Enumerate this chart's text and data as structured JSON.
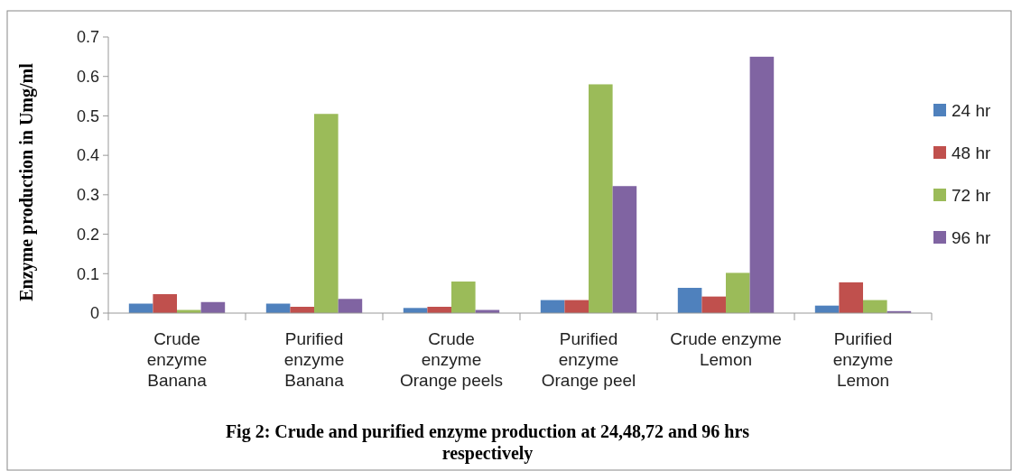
{
  "chart_data": {
    "type": "bar",
    "title": "Fig 2: Crude and purified enzyme production at 24,48,72 and 96 hrs\nrespectively",
    "ylabel": "Enzyme production in Umg/ml",
    "categories": [
      "Crude\nenzyme\nBanana",
      "Purified\nenzyme\nBanana",
      "Crude\nenzyme\nOrange peels",
      "Purified\nenzyme\nOrange peel",
      "Crude enzyme\nLemon",
      "Purified\nenzyme\nLemon"
    ],
    "series": [
      {
        "name": "24 hr",
        "color": "#4f81bd",
        "values": [
          0.024,
          0.024,
          0.013,
          0.033,
          0.064,
          0.019
        ]
      },
      {
        "name": "48 hr",
        "color": "#c0504d",
        "values": [
          0.048,
          0.016,
          0.016,
          0.033,
          0.042,
          0.078
        ]
      },
      {
        "name": "72 hr",
        "color": "#9bbb59",
        "values": [
          0.008,
          0.505,
          0.08,
          0.58,
          0.102,
          0.033
        ]
      },
      {
        "name": "96 hr",
        "color": "#8064a2",
        "values": [
          0.028,
          0.036,
          0.008,
          0.322,
          0.65,
          0.005
        ]
      }
    ],
    "ylim": [
      0,
      0.7
    ],
    "yticks": [
      0,
      0.1,
      0.2,
      0.3,
      0.4,
      0.5,
      0.6,
      0.7
    ],
    "legend": "right"
  }
}
